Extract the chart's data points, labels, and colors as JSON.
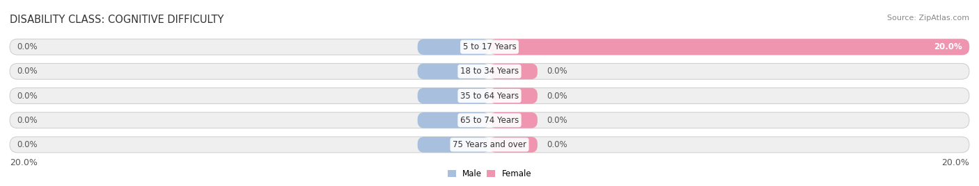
{
  "title": "DISABILITY CLASS: COGNITIVE DIFFICULTY",
  "source": "Source: ZipAtlas.com",
  "categories": [
    "5 to 17 Years",
    "18 to 34 Years",
    "35 to 64 Years",
    "65 to 74 Years",
    "75 Years and over"
  ],
  "male_values": [
    0.0,
    0.0,
    0.0,
    0.0,
    0.0
  ],
  "female_values": [
    20.0,
    0.0,
    0.0,
    0.0,
    0.0
  ],
  "male_color": "#a8c0de",
  "female_color": "#f095b0",
  "bar_bg_color": "#efefef",
  "bar_border_color": "#cccccc",
  "xlim": 20.0,
  "male_stub": 3.0,
  "female_stub": 2.0,
  "title_fontsize": 10.5,
  "label_fontsize": 8.5,
  "tick_fontsize": 9,
  "source_fontsize": 8,
  "fig_bg_color": "#ffffff",
  "legend_male_color": "#a8c0de",
  "legend_female_color": "#f095b0"
}
